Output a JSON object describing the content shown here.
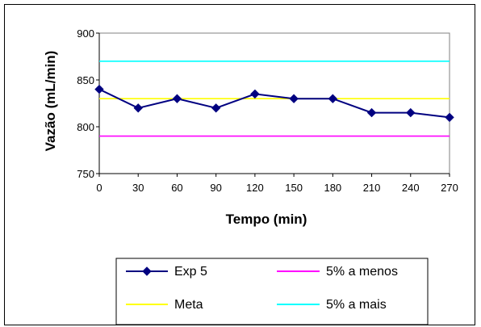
{
  "chart_data": {
    "type": "line",
    "title": "",
    "xlabel": "Tempo (min)",
    "ylabel": "Vazão (mL/min)",
    "x": [
      0,
      30,
      60,
      90,
      120,
      150,
      180,
      210,
      240,
      270
    ],
    "x_ticks": [
      "0",
      "30",
      "60",
      "90",
      "120",
      "150",
      "180",
      "210",
      "240",
      "270"
    ],
    "y_ticks": [
      "750",
      "800",
      "850",
      "900"
    ],
    "ylim": [
      750,
      900
    ],
    "grid": false,
    "legend_position": "bottom",
    "series": [
      {
        "name": "Exp 5",
        "color": "#000080",
        "marker": "diamond",
        "x": [
          0,
          30,
          60,
          90,
          120,
          150,
          165,
          180,
          210,
          225,
          240,
          270
        ],
        "values": [
          840,
          820,
          830,
          820,
          835,
          830,
          830,
          830,
          815,
          815,
          815,
          810
        ],
        "marker_x": [
          0,
          30,
          60,
          90,
          120,
          150,
          180,
          210,
          240,
          270
        ],
        "marker_values": [
          840,
          820,
          830,
          820,
          835,
          830,
          830,
          815,
          815,
          810
        ]
      },
      {
        "name": "5% a menos",
        "color": "#ff00ff",
        "constant": 790
      },
      {
        "name": "Meta",
        "color": "#ffff00",
        "constant": 830
      },
      {
        "name": "5% a mais",
        "color": "#00ffff",
        "constant": 870
      }
    ]
  }
}
